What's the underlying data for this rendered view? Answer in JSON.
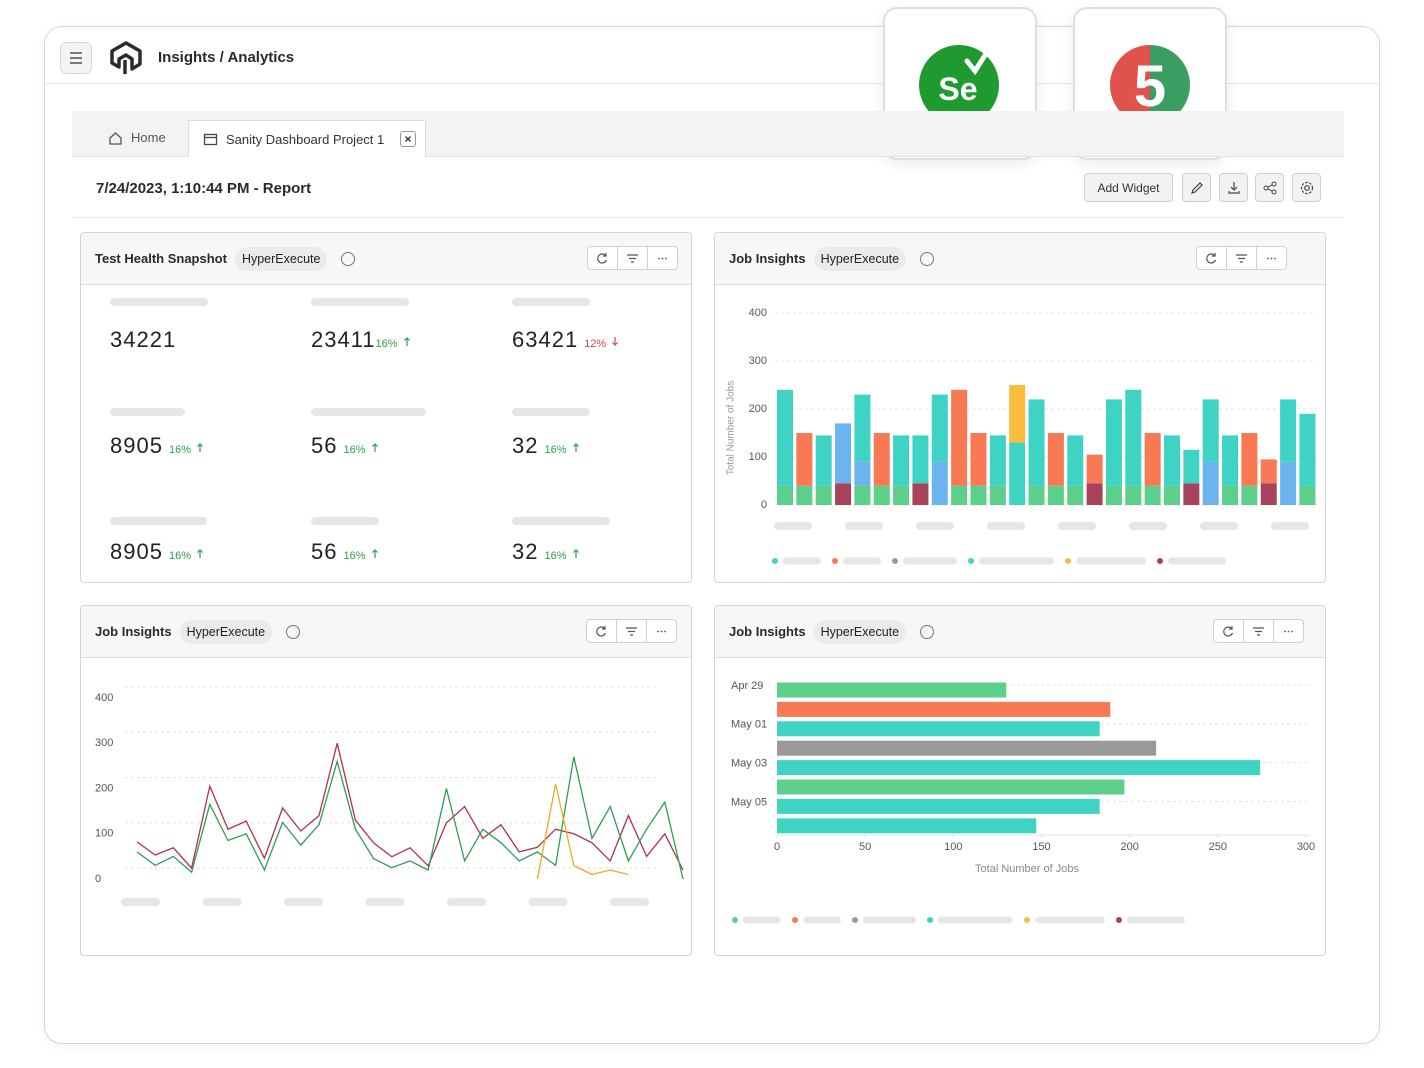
{
  "header": {
    "title": "Insights / Analytics"
  },
  "integrations": [
    {
      "label": "Se"
    },
    {
      "label": "5"
    }
  ],
  "tabs": [
    "Home",
    "Sanity Dashboard Project 1"
  ],
  "report": {
    "title": "7/24/2023, 1:10:44 PM - Report",
    "action": "Add Widget"
  },
  "snapshot": {
    "title": "Test Health Snapshot",
    "badge": "HyperExecute",
    "metrics": [
      {
        "value": 34221
      },
      {
        "value": 23411,
        "change": "16%",
        "direction": "up"
      },
      {
        "value": 63421,
        "change": "12%",
        "direction": "down"
      },
      {
        "value": 8905,
        "change": "16%",
        "direction": "up"
      },
      {
        "value": 56,
        "change": "16%",
        "direction": "up"
      },
      {
        "value": 32,
        "change": "16%",
        "direction": "up"
      },
      {
        "value": 8905,
        "change": "16%",
        "direction": "up"
      },
      {
        "value": 56,
        "change": "16%",
        "direction": "up"
      },
      {
        "value": 32,
        "change": "16%",
        "direction": "up"
      }
    ]
  },
  "chart_data": [
    {
      "type": "stacked-bar",
      "title": "Job Insights",
      "badge": "HyperExecute",
      "y_label": "Total Number of Jobs",
      "ylim": [
        0,
        400
      ],
      "yticks": [
        0,
        100,
        200,
        300,
        400
      ],
      "grid": true,
      "series": [
        {
          "color": "#5ccf8a",
          "values": [
            40,
            40,
            40,
            0,
            40,
            40,
            40,
            0,
            0,
            40,
            40,
            40,
            0,
            40,
            40,
            40,
            0,
            40,
            40,
            40,
            40,
            0,
            0,
            40,
            40,
            0,
            0,
            40
          ]
        },
        {
          "color": "#a8435e",
          "values": [
            0,
            0,
            0,
            45,
            0,
            0,
            0,
            45,
            0,
            0,
            0,
            0,
            0,
            0,
            0,
            0,
            45,
            0,
            0,
            0,
            0,
            45,
            0,
            0,
            0,
            45,
            0,
            0
          ]
        },
        {
          "color": "#6cb4f0",
          "values": [
            0,
            0,
            0,
            125,
            50,
            0,
            0,
            0,
            90,
            0,
            0,
            0,
            0,
            0,
            0,
            0,
            0,
            0,
            0,
            0,
            0,
            0,
            90,
            0,
            0,
            0,
            90,
            0
          ]
        },
        {
          "color": "#3fd3c3",
          "values": [
            200,
            0,
            105,
            0,
            140,
            0,
            105,
            100,
            140,
            0,
            0,
            105,
            130,
            180,
            0,
            105,
            0,
            180,
            200,
            0,
            105,
            70,
            130,
            105,
            0,
            0,
            130,
            150
          ]
        },
        {
          "color": "#f77a55",
          "values": [
            0,
            110,
            0,
            0,
            0,
            110,
            0,
            0,
            0,
            200,
            110,
            0,
            0,
            0,
            110,
            0,
            60,
            0,
            0,
            110,
            0,
            0,
            0,
            0,
            110,
            50,
            0,
            0
          ]
        },
        {
          "color": "#f8bd3b",
          "values": [
            0,
            0,
            0,
            0,
            0,
            0,
            0,
            0,
            0,
            0,
            0,
            0,
            120,
            0,
            0,
            0,
            0,
            0,
            0,
            0,
            0,
            0,
            0,
            0,
            0,
            0,
            0,
            0
          ]
        }
      ],
      "legend_colors": [
        "#3fd3c3",
        "#f77a55",
        "#999999",
        "#3fd3c3",
        "#f8bd3b",
        "#a8435e"
      ]
    },
    {
      "type": "line",
      "title": "Job Insights",
      "badge": "HyperExecute",
      "ylim": [
        0,
        400
      ],
      "yticks": [
        0,
        100,
        200,
        300,
        400
      ],
      "grid": true,
      "series": [
        {
          "color": "#b03050",
          "values": [
            82,
            53,
            69,
            24,
            205,
            110,
            128,
            46,
            157,
            106,
            140,
            300,
            130,
            80,
            49,
            69,
            29,
            124,
            160,
            90,
            120,
            60,
            70,
            110,
            100,
            80,
            40,
            140,
            50,
            100,
            20
          ]
        },
        {
          "color": "#2e9e4f",
          "values": [
            60,
            30,
            50,
            15,
            165,
            85,
            100,
            20,
            125,
            75,
            120,
            260,
            110,
            45,
            25,
            40,
            20,
            200,
            40,
            110,
            80,
            40,
            60,
            30,
            270,
            90,
            160,
            40,
            110,
            170,
            0
          ]
        },
        {
          "color": "#f5a623",
          "values": [
            null,
            null,
            null,
            null,
            null,
            null,
            null,
            null,
            null,
            null,
            null,
            null,
            null,
            null,
            null,
            null,
            null,
            null,
            null,
            null,
            null,
            null,
            0,
            210,
            30,
            10,
            20,
            10,
            null,
            null,
            null
          ]
        }
      ]
    },
    {
      "type": "hbar",
      "title": "Job Insights",
      "badge": "HyperExecute",
      "x_label": "Total Number of Jobs",
      "categories": [
        "Apr 29",
        null,
        "May 01",
        null,
        "May 03",
        null,
        "May 05",
        null
      ],
      "values": [
        130,
        189,
        183,
        215,
        274,
        197,
        183,
        147
      ],
      "colors": [
        "#5ccf8a",
        "#f77a55",
        "#3fd3c3",
        "#999999",
        "#3fd3c3",
        "#5ccf8a",
        "#3fd3c3",
        "#3fd3c3"
      ],
      "xlim": [
        0,
        300
      ],
      "xticks": [
        0,
        50,
        100,
        150,
        200,
        250,
        300
      ],
      "grid": true,
      "legend_colors": [
        "#5ccf8a",
        "#f77a55",
        "#999999",
        "#3fd3c3",
        "#f8bd3b",
        "#a8435e"
      ]
    }
  ]
}
